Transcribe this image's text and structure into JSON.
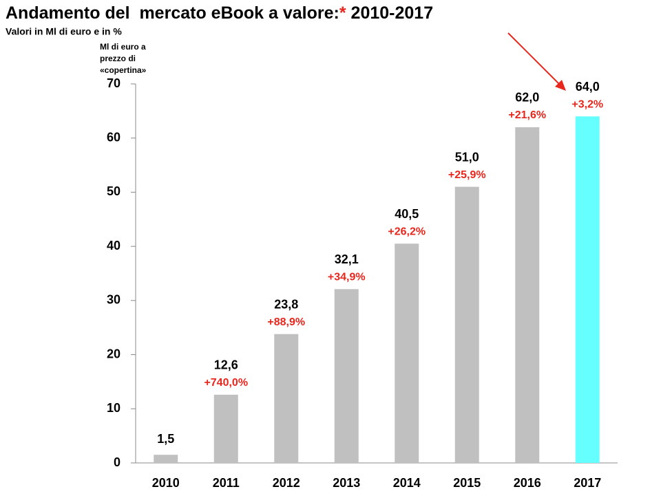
{
  "chart_data": {
    "type": "bar",
    "title": "Andamento del  mercato eBook a valore:",
    "title_mark": "*",
    "title_years": "2010-2017",
    "subtitle": "Valori in Ml di euro e in %",
    "y_label_lines": [
      "Ml di euro a",
      "prezzo di",
      "«copertina»"
    ],
    "categories": [
      "2010",
      "2011",
      "2012",
      "2013",
      "2014",
      "2015",
      "2016",
      "2017"
    ],
    "values": [
      1.5,
      12.6,
      23.8,
      32.1,
      40.5,
      51.0,
      62.0,
      64.0
    ],
    "value_labels": [
      "1,5",
      "12,6",
      "23,8",
      "32,1",
      "40,5",
      "51,0",
      "62,0",
      "64,0"
    ],
    "growth_labels": [
      null,
      "+740,0%",
      "+88,9%",
      "+34,9%",
      "+26,2%",
      "+25,9%",
      "+21,6%",
      "+3,2%"
    ],
    "colors": [
      "#c0c0c0",
      "#c0c0c0",
      "#c0c0c0",
      "#c0c0c0",
      "#c0c0c0",
      "#c0c0c0",
      "#c0c0c0",
      "#66ffff"
    ],
    "ylim": [
      0,
      70
    ],
    "yticks": [
      0,
      10,
      20,
      30,
      40,
      50,
      60,
      70
    ]
  }
}
